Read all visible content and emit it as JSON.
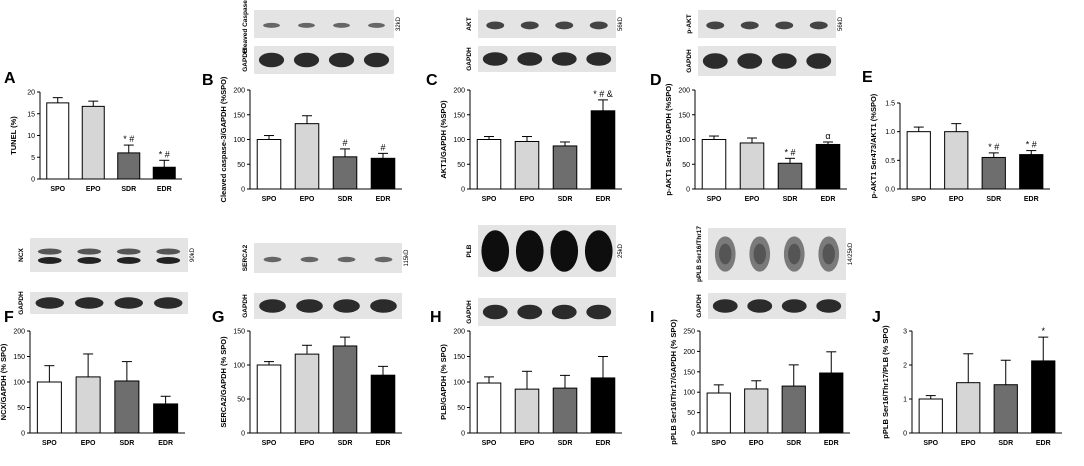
{
  "categories": [
    "SPO",
    "EPO",
    "SDR",
    "EDR"
  ],
  "colors": {
    "SPO": "#ffffff",
    "EPO": "#d6d6d6",
    "SDR": "#6e6e6e",
    "EDR": "#000000",
    "stroke": "#000000",
    "blot_bg": "#e4e4e4",
    "band": "#2b2b2b"
  },
  "chart_data": [
    {
      "type": "bar",
      "panel": "A",
      "ylabel": "TUNEL (%)",
      "yticks": [
        "0",
        "5",
        "10",
        "15",
        "20"
      ],
      "ylim": [
        0,
        20
      ],
      "values": [
        17.5,
        16.7,
        6.0,
        2.7
      ],
      "errors": [
        1.2,
        1.2,
        1.8,
        1.6
      ],
      "annotations": [
        "",
        "",
        "* #",
        "* #"
      ],
      "blots": []
    },
    {
      "type": "bar",
      "panel": "B",
      "ylabel": "Cleaved caspase-3/GAPDH (%SPO)",
      "yticks": [
        "0",
        "50",
        "100",
        "150",
        "200"
      ],
      "ylim": [
        0,
        200
      ],
      "values": [
        100,
        132,
        65,
        62
      ],
      "errors": [
        8,
        16,
        16,
        10
      ],
      "annotations": [
        "",
        "",
        "#",
        "#"
      ],
      "blots": [
        {
          "label": "Cleaved Caspase-3",
          "kd": "32kD",
          "style": "faint"
        },
        {
          "label": "GAPDH",
          "kd": "",
          "style": "strong"
        }
      ]
    },
    {
      "type": "bar",
      "panel": "C",
      "ylabel": "AKT1/GAPDH (%SPO)",
      "yticks": [
        "0",
        "50",
        "100",
        "150",
        "200"
      ],
      "ylim": [
        0,
        200
      ],
      "values": [
        100,
        96,
        87,
        158
      ],
      "errors": [
        6,
        10,
        8,
        22
      ],
      "annotations": [
        "",
        "",
        "",
        "* # &"
      ],
      "blots": [
        {
          "label": "AKT",
          "kd": "56kD",
          "style": "medium"
        },
        {
          "label": "GAPDH",
          "kd": "",
          "style": "strong"
        }
      ]
    },
    {
      "type": "bar",
      "panel": "D",
      "ylabel": "p-AKT1 Ser473/GAPDH (%SPO)",
      "yticks": [
        "0",
        "50",
        "100",
        "150",
        "200"
      ],
      "ylim": [
        0,
        200
      ],
      "values": [
        100,
        93,
        52,
        90
      ],
      "errors": [
        7,
        10,
        10,
        5
      ],
      "annotations": [
        "",
        "",
        "* #",
        "α"
      ],
      "blots": [
        {
          "label": "p-AKT",
          "kd": "56kD",
          "style": "medium"
        },
        {
          "label": "GAPDH",
          "kd": "",
          "style": "strong"
        }
      ]
    },
    {
      "type": "bar",
      "panel": "E",
      "ylabel": "p-AKT1 Ser473/AKT1 (%SPO)",
      "yticks": [
        "0.0",
        "0.5",
        "1.0",
        "1.5"
      ],
      "ylim": [
        0,
        1.5
      ],
      "values": [
        1.0,
        1.0,
        0.55,
        0.6
      ],
      "errors": [
        0.08,
        0.14,
        0.08,
        0.07
      ],
      "annotations": [
        "",
        "",
        "* #",
        "* #"
      ],
      "blots": []
    },
    {
      "type": "bar",
      "panel": "F",
      "ylabel": "NCX/GAPDH (% SPO)",
      "yticks": [
        "0",
        "50",
        "100",
        "150",
        "200"
      ],
      "ylim": [
        0,
        200
      ],
      "values": [
        100,
        110,
        102,
        57
      ],
      "errors": [
        32,
        45,
        38,
        15
      ],
      "annotations": [
        "",
        "",
        "",
        ""
      ],
      "blots": [
        {
          "label": "NCX",
          "kd": "90kD",
          "style": "double"
        },
        {
          "label": "GAPDH",
          "kd": "",
          "style": "strong"
        }
      ]
    },
    {
      "type": "bar",
      "panel": "G",
      "ylabel": "SERCA2/GAPDH (% SPO)",
      "yticks": [
        "0",
        "50",
        "100",
        "150"
      ],
      "ylim": [
        0,
        150
      ],
      "values": [
        100,
        116,
        128,
        85
      ],
      "errors": [
        5,
        13,
        13,
        13
      ],
      "annotations": [
        "",
        "",
        "",
        ""
      ],
      "blots": [
        {
          "label": "SERCA2",
          "kd": "115kD",
          "style": "faint"
        },
        {
          "label": "GAPDH",
          "kd": "",
          "style": "strong"
        }
      ]
    },
    {
      "type": "bar",
      "panel": "H",
      "ylabel": "PLB/GAPDH (% SPO)",
      "yticks": [
        "0",
        "50",
        "100",
        "150",
        "200"
      ],
      "ylim": [
        0,
        200
      ],
      "values": [
        98,
        86,
        88,
        108
      ],
      "errors": [
        12,
        35,
        25,
        42
      ],
      "annotations": [
        "",
        "",
        "",
        ""
      ],
      "blots": [
        {
          "label": "PLB",
          "kd": "25kD",
          "style": "dark"
        },
        {
          "label": "GAPDH",
          "kd": "",
          "style": "strong"
        }
      ]
    },
    {
      "type": "bar",
      "panel": "I",
      "ylabel": "pPLB Ser16/Thr17/GAPDH (% SPO)",
      "yticks": [
        "0",
        "50",
        "100",
        "150",
        "200",
        "250"
      ],
      "ylim": [
        0,
        250
      ],
      "values": [
        98,
        108,
        115,
        147
      ],
      "errors": [
        20,
        20,
        52,
        52
      ],
      "annotations": [
        "",
        "",
        "",
        ""
      ],
      "blots": [
        {
          "label": "pPLB Ser16/Thr17",
          "kd": "14/25kD",
          "style": "smear"
        },
        {
          "label": "GAPDH",
          "kd": "",
          "style": "strong"
        }
      ]
    },
    {
      "type": "bar",
      "panel": "J",
      "ylabel": "pPLB Ser16/Thr17/PLB (% SPO)",
      "yticks": [
        "0",
        "1",
        "2",
        "3"
      ],
      "ylim": [
        0,
        3
      ],
      "values": [
        1.0,
        1.48,
        1.42,
        2.12
      ],
      "errors": [
        0.1,
        0.85,
        0.72,
        0.7
      ],
      "annotations": [
        "",
        "",
        "",
        "*"
      ],
      "blots": []
    }
  ]
}
